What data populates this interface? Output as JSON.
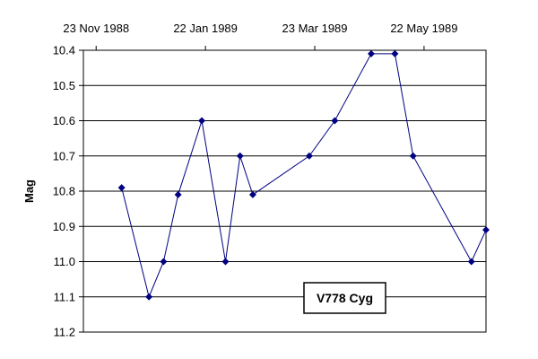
{
  "chart_data": {
    "type": "line",
    "title": "",
    "ylabel": "Mag",
    "xlabel": "",
    "x_axis_position": "top",
    "y_inverted": true,
    "ylim": [
      10.4,
      11.2
    ],
    "ytick_step": 0.1,
    "xlim": [
      "1988-11-16",
      "1989-06-25"
    ],
    "xticks": [
      {
        "date": "1988-11-23",
        "label": "23 Nov 1988"
      },
      {
        "date": "1989-01-22",
        "label": "22 Jan 1989"
      },
      {
        "date": "1989-03-23",
        "label": "23 Mar 1989"
      },
      {
        "date": "1989-05-22",
        "label": "22 May 1989"
      }
    ],
    "grid": {
      "horizontal": true,
      "vertical": false
    },
    "legend": "none",
    "annotation": {
      "text": "V778 Cyg",
      "boxed": true,
      "placement": "lower-center-right"
    },
    "series": [
      {
        "color": "#000080",
        "marker": "diamond",
        "points": [
          {
            "x": "1988-12-07",
            "y": 10.79
          },
          {
            "x": "1988-12-22",
            "y": 11.1
          },
          {
            "x": "1988-12-30",
            "y": 11.0
          },
          {
            "x": "1989-01-07",
            "y": 10.81
          },
          {
            "x": "1989-01-20",
            "y": 10.6
          },
          {
            "x": "1989-02-02",
            "y": 11.0
          },
          {
            "x": "1989-02-10",
            "y": 10.7
          },
          {
            "x": "1989-02-17",
            "y": 10.81
          },
          {
            "x": "1989-03-20",
            "y": 10.7
          },
          {
            "x": "1989-04-03",
            "y": 10.6
          },
          {
            "x": "1989-04-23",
            "y": 10.41
          },
          {
            "x": "1989-05-06",
            "y": 10.41
          },
          {
            "x": "1989-05-16",
            "y": 10.7
          },
          {
            "x": "1989-06-17",
            "y": 11.0
          },
          {
            "x": "1989-06-25",
            "y": 10.91
          }
        ]
      }
    ]
  }
}
